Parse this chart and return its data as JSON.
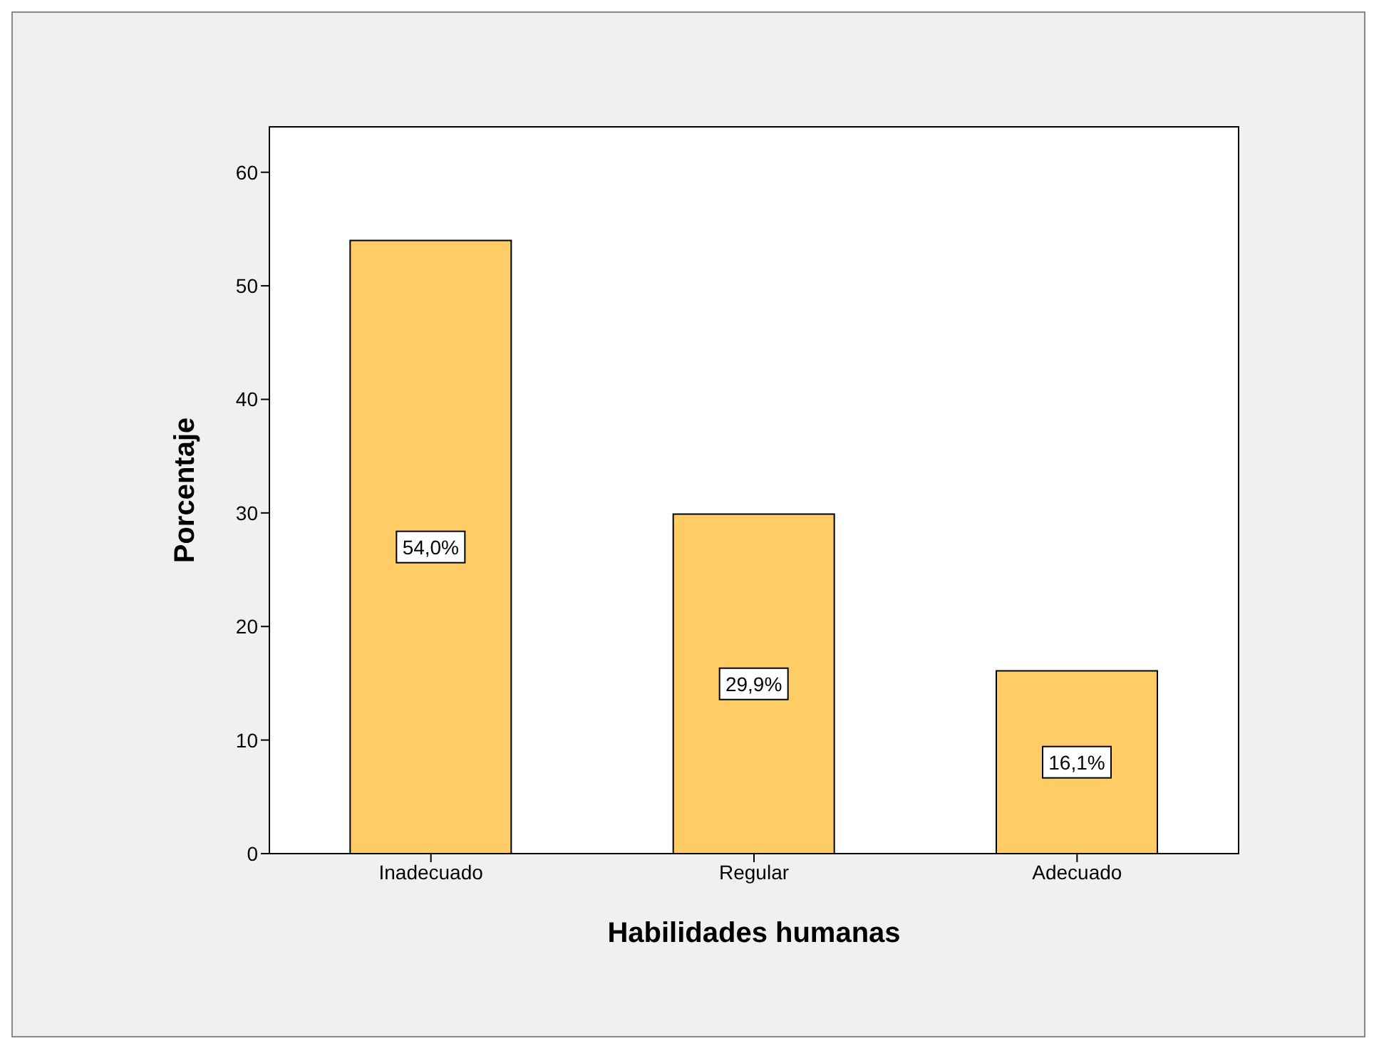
{
  "chart_data": {
    "type": "bar",
    "xlabel": "Habilidades humanas",
    "ylabel": "Porcentaje",
    "categories": [
      "Inadecuado",
      "Regular",
      "Adecuado"
    ],
    "values": [
      54.0,
      29.9,
      16.1
    ],
    "value_labels": [
      "54,0%",
      "29,9%",
      "16,1%"
    ],
    "color": "#ffcc66",
    "ylim": [
      0,
      64
    ],
    "yticks": [
      0,
      10,
      20,
      30,
      40,
      50,
      60
    ],
    "legend": false
  }
}
